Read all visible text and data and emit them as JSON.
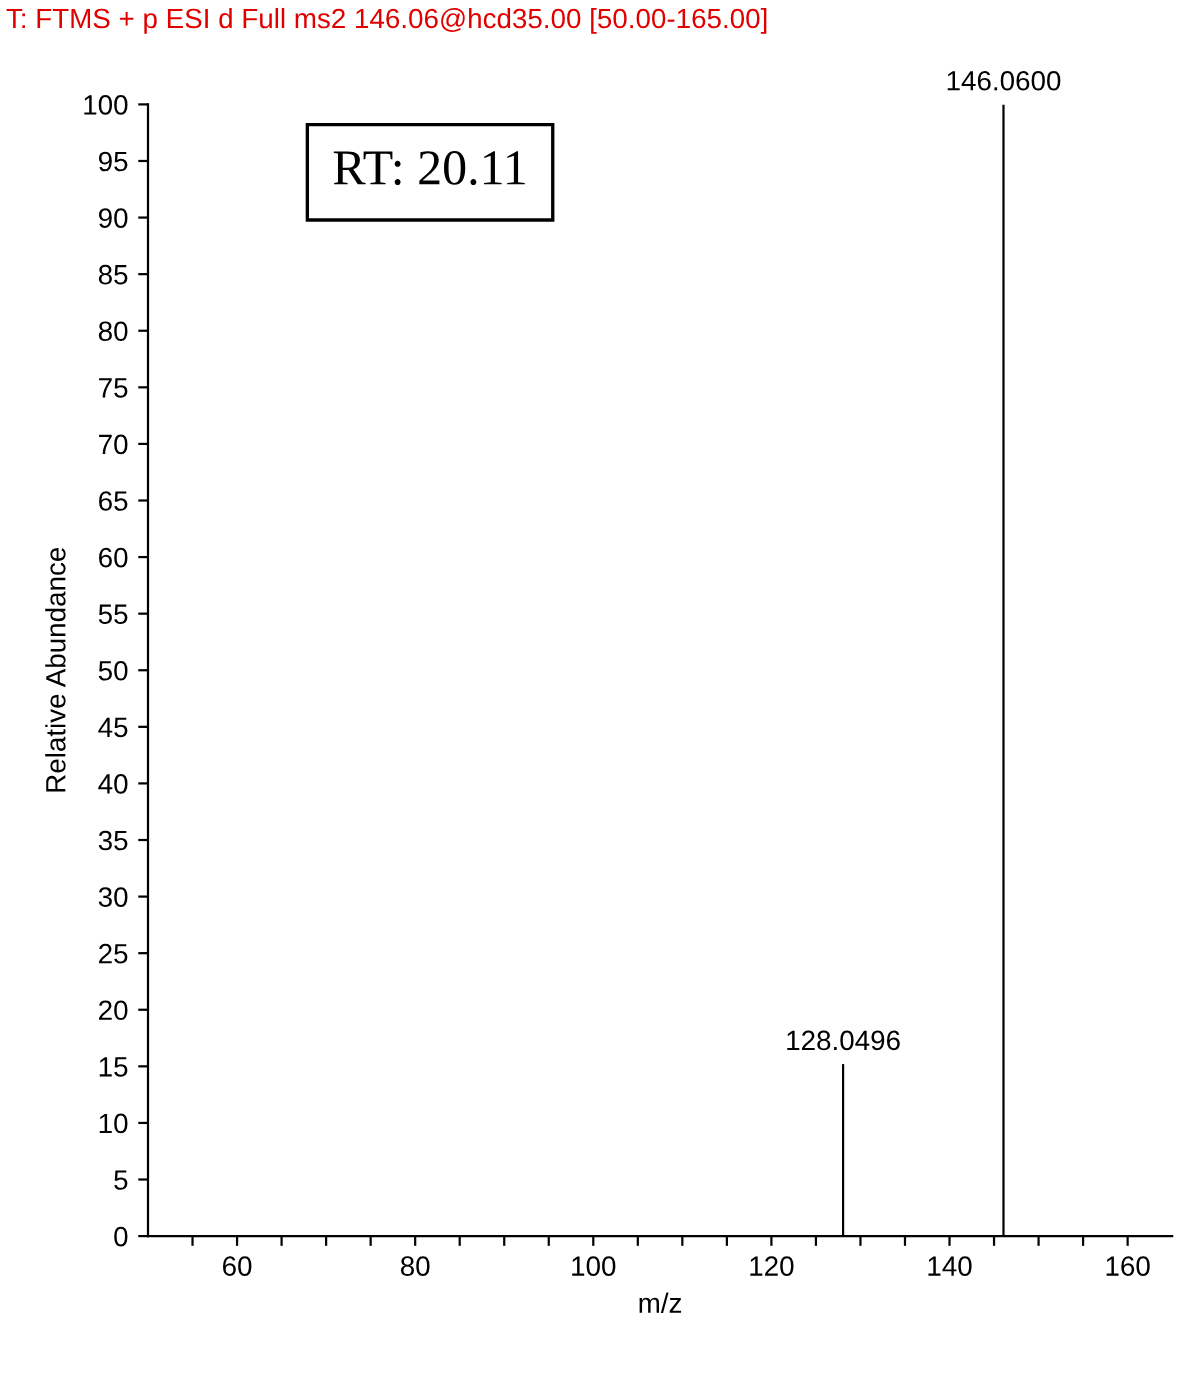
{
  "chart_data": {
    "type": "bar",
    "title": "T: FTMS + p ESI d Full ms2 146.06@hcd35.00 [50.00-165.00]",
    "xlabel": "m/z",
    "ylabel": "Relative Abundance",
    "x": [
      128.0496,
      146.06
    ],
    "series": [
      {
        "color": "#000000",
        "values": [
          15.2,
          100
        ]
      }
    ],
    "value_labels": [
      "128.0496",
      "146.0600"
    ],
    "annotations": [
      "RT: 20.11"
    ],
    "xlim": [
      50,
      165
    ],
    "xticks": [
      {
        "value": 55,
        "label": null
      },
      60,
      {
        "value": 65,
        "label": null
      },
      {
        "value": 70,
        "label": null
      },
      {
        "value": 75,
        "label": null
      },
      80,
      {
        "value": 85,
        "label": null
      },
      {
        "value": 90,
        "label": null
      },
      {
        "value": 95,
        "label": null
      },
      100,
      {
        "value": 105,
        "label": null
      },
      {
        "value": 110,
        "label": null
      },
      {
        "value": 115,
        "label": null
      },
      120,
      {
        "value": 125,
        "label": null
      },
      {
        "value": 130,
        "label": null
      },
      {
        "value": 135,
        "label": null
      },
      140,
      {
        "value": 145,
        "label": null
      },
      {
        "value": 150,
        "label": null
      },
      {
        "value": 155,
        "label": null
      },
      160
    ],
    "ylim": [
      0,
      100
    ],
    "yticks": [
      0,
      5,
      10,
      15,
      20,
      25,
      30,
      35,
      40,
      45,
      50,
      55,
      60,
      65,
      70,
      75,
      80,
      85,
      90,
      95,
      100
    ],
    "grid": false,
    "legend": false
  }
}
